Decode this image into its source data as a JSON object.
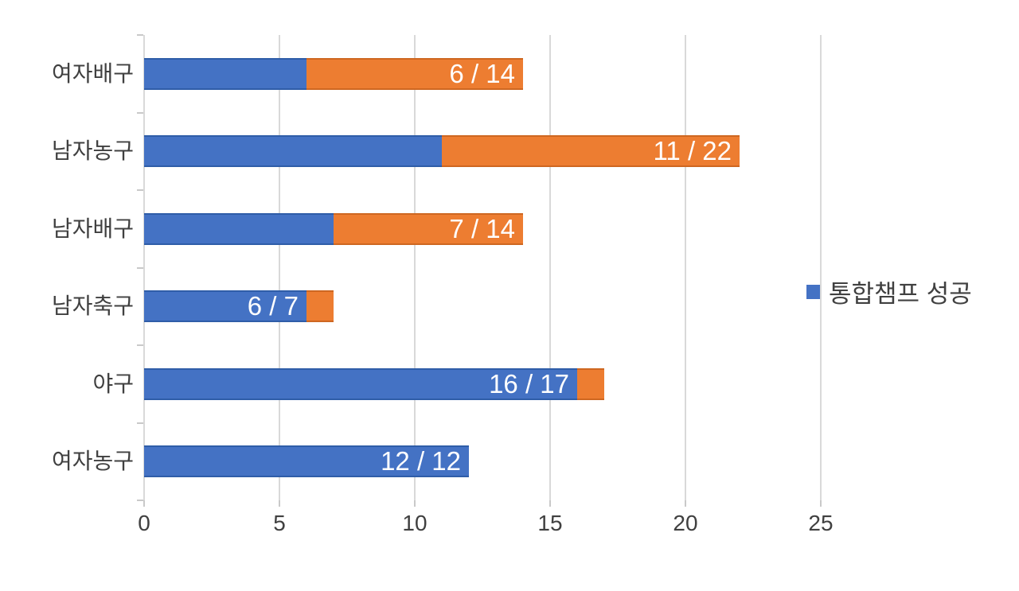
{
  "chart_data": {
    "type": "bar",
    "orientation": "horizontal",
    "stacked": true,
    "title": "",
    "categories": [
      "여자배구",
      "남자농구",
      "남자배구",
      "남자축구",
      "야구",
      "여자농구"
    ],
    "series": [
      {
        "name": "통합챔프 성공",
        "color": "#4472C4",
        "values": [
          6,
          11,
          7,
          6,
          16,
          12
        ]
      },
      {
        "name": "",
        "color": "#ED7D31",
        "values": [
          8,
          11,
          7,
          1,
          1,
          0
        ]
      }
    ],
    "totals": [
      14,
      22,
      14,
      7,
      17,
      12
    ],
    "data_labels": [
      "6 / 14",
      "11 / 22",
      "7 / 14",
      "6 / 7",
      "16 / 17",
      "12 / 12"
    ],
    "xlabel": "",
    "ylabel": "",
    "xlim": [
      0,
      25
    ],
    "x_ticks": [
      0,
      5,
      10,
      15,
      20,
      25
    ],
    "grid": "vertical-only",
    "legend": {
      "label": "통합챔프 성공",
      "position": "right",
      "marker_color": "#4472C4"
    }
  },
  "colors": {
    "blue": "#4472C4",
    "blue_edge": "#2F5DA8",
    "orange": "#ED7D31",
    "orange_edge": "#CE6721",
    "gridline": "#D9D9D9",
    "tick": "#C9C9C9",
    "text": "#404040",
    "label_text": "#FFFFFF"
  }
}
